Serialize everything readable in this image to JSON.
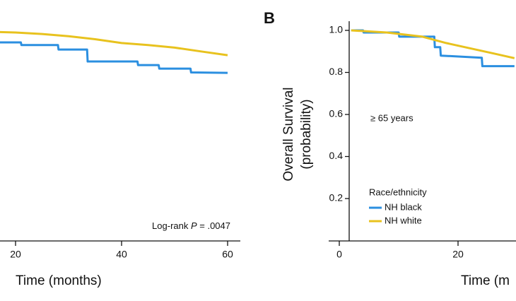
{
  "chart_data": [
    {
      "type": "line",
      "xlabel": "Time (months)",
      "xlim": [
        0,
        62
      ],
      "ylim": [
        0,
        1
      ],
      "xticks": [
        20,
        40,
        60
      ],
      "annotation": {
        "lead": "Log-rank ",
        "italic": "P",
        "tail": " = .0047"
      },
      "series": [
        {
          "color": "#e8c21e",
          "x": [
            16,
            20,
            25,
            30,
            35,
            40,
            45,
            50,
            55,
            60
          ],
          "values": [
            0.993,
            0.99,
            0.983,
            0.972,
            0.958,
            0.94,
            0.93,
            0.918,
            0.9,
            0.882
          ]
        },
        {
          "color": "#2b8fe0",
          "x": [
            16,
            21,
            21.1,
            28,
            28.1,
            33.5,
            33.6,
            43,
            43.1,
            47,
            47.1,
            53,
            53.1,
            60
          ],
          "values": [
            0.943,
            0.943,
            0.93,
            0.93,
            0.909,
            0.909,
            0.852,
            0.852,
            0.835,
            0.835,
            0.818,
            0.818,
            0.8,
            0.798
          ]
        }
      ]
    },
    {
      "type": "line",
      "panel_label": "B",
      "xlabel": "Time (m",
      "ylabel": [
        "Overall Survival",
        "(probability)"
      ],
      "xlim": [
        0,
        29.5
      ],
      "ylim": [
        0,
        1
      ],
      "xticks": [
        0,
        20
      ],
      "yticks": [
        0.2,
        0.4,
        0.6,
        0.8,
        {
          "value": 1,
          "label": "1.0"
        }
      ],
      "subgroup": "≥ 65 years",
      "legend_title": "Race/ethnicity",
      "series": [
        {
          "name": "NH black",
          "color": "#2b8fe0",
          "x": [
            2,
            4,
            4.1,
            10,
            10.1,
            16,
            16.1,
            17,
            17.1,
            24,
            24.1,
            29.5
          ],
          "values": [
            1.0,
            1.0,
            0.99,
            0.99,
            0.97,
            0.97,
            0.92,
            0.92,
            0.88,
            0.87,
            0.83,
            0.83
          ]
        },
        {
          "name": "NH white",
          "color": "#e8c21e",
          "x": [
            2,
            8,
            14,
            18,
            22,
            26,
            29.5
          ],
          "values": [
            1.0,
            0.99,
            0.97,
            0.94,
            0.915,
            0.89,
            0.868
          ]
        }
      ]
    }
  ]
}
